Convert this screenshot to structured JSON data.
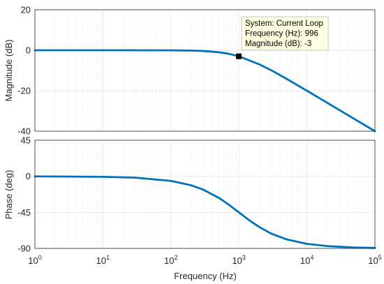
{
  "chart_data": [
    {
      "type": "line",
      "panel": "magnitude",
      "title": "",
      "xlabel": "",
      "ylabel": "Magnitude (dB)",
      "xscale": "log",
      "xlim": [
        1,
        100000
      ],
      "ylim": [
        -40,
        20
      ],
      "yticks": [
        20,
        0,
        -20,
        -40
      ],
      "grid": true,
      "series": [
        {
          "color": "#0072BD",
          "x": [
            1,
            10,
            100,
            200,
            300,
            500,
            700,
            1000,
            2000,
            3000,
            5000,
            10000,
            20000,
            50000,
            100000
          ],
          "y": [
            0,
            0,
            -0.04,
            -0.17,
            -0.37,
            -0.97,
            -1.7,
            -3,
            -7,
            -9.9,
            -14.1,
            -20,
            -26,
            -34,
            -40
          ]
        }
      ]
    },
    {
      "type": "line",
      "panel": "phase",
      "title": "",
      "xlabel": "Frequency (Hz)",
      "ylabel": "Phase (deg)",
      "xscale": "log",
      "xlim": [
        1,
        100000
      ],
      "ylim": [
        -90,
        45
      ],
      "yticks": [
        45,
        0,
        -45,
        -90
      ],
      "grid": true,
      "series": [
        {
          "color": "#0072BD",
          "x": [
            1,
            10,
            30,
            100,
            200,
            300,
            500,
            700,
            1000,
            1500,
            2000,
            3000,
            5000,
            10000,
            20000,
            50000,
            100000
          ],
          "y": [
            -0.1,
            -0.6,
            -1.7,
            -5.7,
            -11.3,
            -16.7,
            -26.6,
            -35,
            -45,
            -56.3,
            -63.4,
            -71.6,
            -78.7,
            -84.3,
            -87.1,
            -88.9,
            -89.4
          ]
        }
      ]
    }
  ],
  "x_tick_labels": [
    {
      "base": "10",
      "exp": "0"
    },
    {
      "base": "10",
      "exp": "1"
    },
    {
      "base": "10",
      "exp": "2"
    },
    {
      "base": "10",
      "exp": "3"
    },
    {
      "base": "10",
      "exp": "4"
    },
    {
      "base": "10",
      "exp": "5"
    }
  ],
  "datatip": {
    "x": 996,
    "y": -3,
    "lines": [
      "System: Current Loop",
      "Frequency (Hz): 996",
      "Magnitude (dB): -3"
    ]
  }
}
